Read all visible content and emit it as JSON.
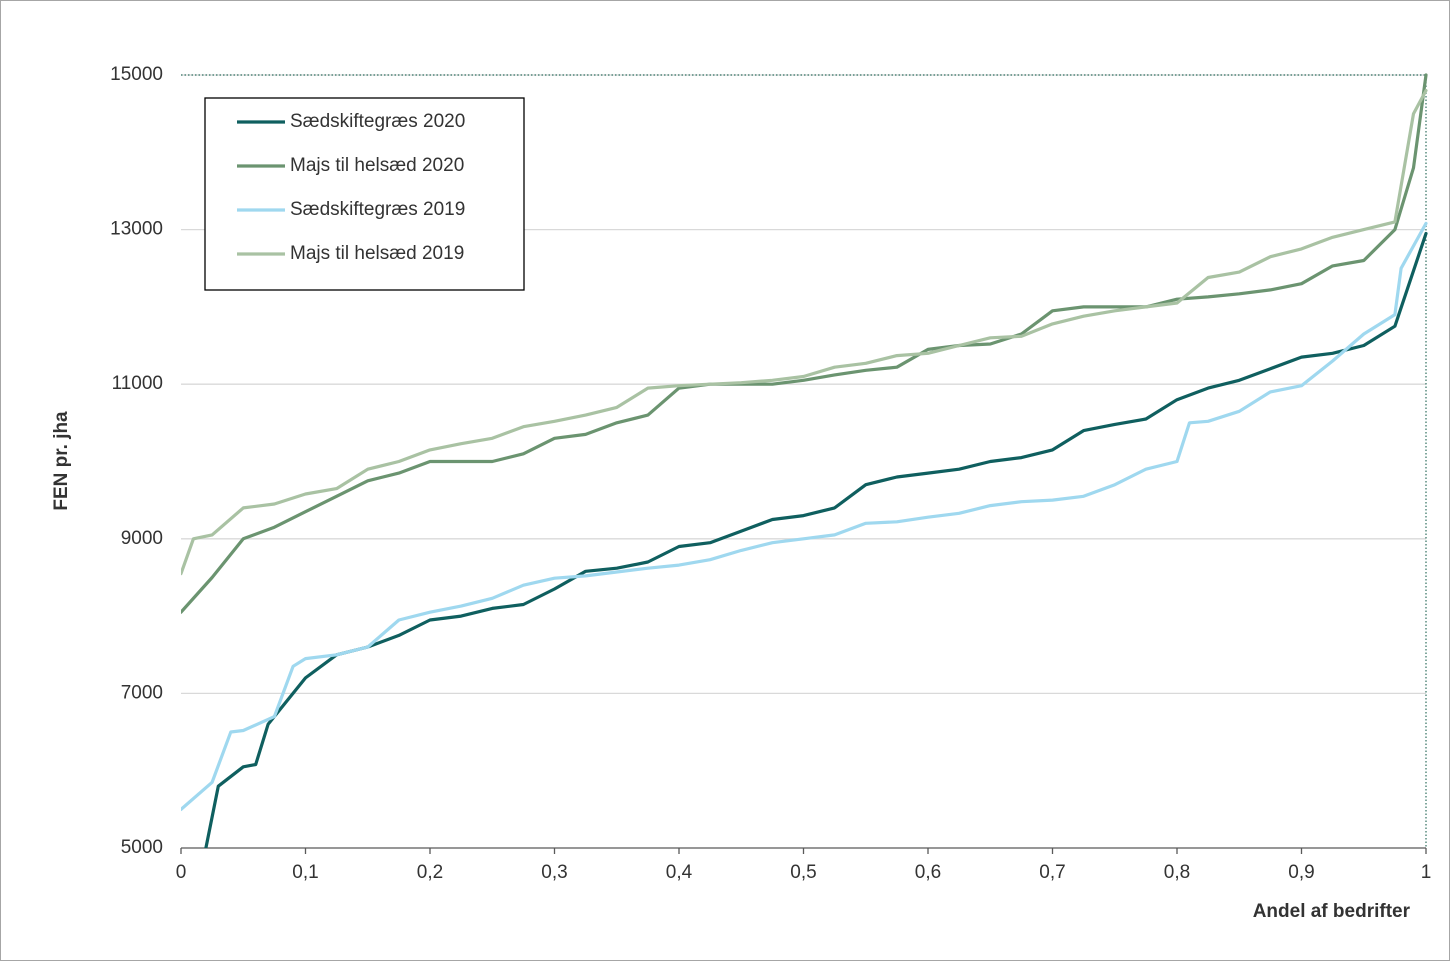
{
  "chart_data": {
    "type": "line",
    "xlabel": "Andel af bedrifter",
    "ylabel": "FEN pr. jha",
    "xlim": [
      0,
      1
    ],
    "ylim": [
      5000,
      15000
    ],
    "xticks": [
      0,
      {
        "value": 0.1,
        "label": "0,1"
      },
      {
        "value": 0.2,
        "label": "0,2"
      },
      {
        "value": 0.3,
        "label": "0,3"
      },
      {
        "value": 0.4,
        "label": "0,4"
      },
      {
        "value": 0.5,
        "label": "0,5"
      },
      {
        "value": 0.6,
        "label": "0,6"
      },
      {
        "value": 0.7,
        "label": "0,7"
      },
      {
        "value": 0.8,
        "label": "0,8"
      },
      {
        "value": 0.9,
        "label": "0,9"
      },
      1
    ],
    "yticks": [
      5000,
      7000,
      9000,
      11000,
      13000,
      15000
    ],
    "grid": true,
    "legend": "top-left",
    "series": [
      {
        "name": "Sædskiftegræs 2020",
        "color": "#0f5f5f",
        "x": [
          0.02,
          0.03,
          0.05,
          0.06,
          0.07,
          0.1,
          0.125,
          0.15,
          0.175,
          0.2,
          0.225,
          0.25,
          0.275,
          0.3,
          0.325,
          0.35,
          0.375,
          0.4,
          0.425,
          0.45,
          0.475,
          0.5,
          0.525,
          0.55,
          0.575,
          0.6,
          0.625,
          0.65,
          0.675,
          0.7,
          0.725,
          0.75,
          0.775,
          0.8,
          0.825,
          0.85,
          0.875,
          0.9,
          0.925,
          0.95,
          0.975,
          1.0
        ],
        "values": [
          5000,
          5800,
          6050,
          6080,
          6600,
          7200,
          7500,
          7600,
          7750,
          7950,
          8000,
          8100,
          8150,
          8350,
          8580,
          8620,
          8700,
          8900,
          8950,
          9100,
          9250,
          9300,
          9400,
          9700,
          9800,
          9850,
          9900,
          10000,
          10050,
          10150,
          10400,
          10480,
          10550,
          10800,
          10950,
          11050,
          11200,
          11350,
          11400,
          11500,
          11750,
          12950
        ]
      },
      {
        "name": "Majs til helsæd 2020",
        "color": "#6b9470",
        "x": [
          0,
          0.025,
          0.05,
          0.075,
          0.1,
          0.125,
          0.15,
          0.175,
          0.2,
          0.225,
          0.25,
          0.275,
          0.3,
          0.325,
          0.35,
          0.375,
          0.4,
          0.425,
          0.45,
          0.475,
          0.5,
          0.525,
          0.55,
          0.575,
          0.6,
          0.625,
          0.65,
          0.675,
          0.7,
          0.725,
          0.75,
          0.775,
          0.8,
          0.825,
          0.85,
          0.875,
          0.9,
          0.925,
          0.95,
          0.975,
          0.99,
          1.0
        ],
        "values": [
          8050,
          8500,
          9000,
          9150,
          9350,
          9550,
          9750,
          9850,
          10000,
          10000,
          10000,
          10100,
          10300,
          10350,
          10500,
          10600,
          10950,
          11000,
          11000,
          11000,
          11050,
          11120,
          11180,
          11220,
          11450,
          11500,
          11520,
          11650,
          11950,
          12000,
          12000,
          12000,
          12100,
          12130,
          12170,
          12220,
          12300,
          12530,
          12600,
          13000,
          13800,
          15000
        ]
      },
      {
        "name": "Sædskiftegræs 2019",
        "color": "#9fd8ef",
        "x": [
          0,
          0.025,
          0.04,
          0.05,
          0.075,
          0.09,
          0.1,
          0.125,
          0.15,
          0.175,
          0.2,
          0.225,
          0.25,
          0.275,
          0.3,
          0.325,
          0.35,
          0.375,
          0.4,
          0.425,
          0.45,
          0.475,
          0.5,
          0.525,
          0.55,
          0.575,
          0.6,
          0.625,
          0.65,
          0.675,
          0.7,
          0.725,
          0.75,
          0.775,
          0.8,
          0.81,
          0.825,
          0.85,
          0.875,
          0.9,
          0.925,
          0.95,
          0.975,
          0.98,
          1.0
        ],
        "values": [
          5500,
          5850,
          6500,
          6520,
          6700,
          7350,
          7450,
          7500,
          7600,
          7950,
          8050,
          8130,
          8230,
          8400,
          8490,
          8520,
          8570,
          8620,
          8660,
          8730,
          8850,
          8950,
          9000,
          9050,
          9200,
          9220,
          9280,
          9330,
          9430,
          9480,
          9500,
          9550,
          9700,
          9900,
          10000,
          10500,
          10520,
          10650,
          10900,
          10980,
          11300,
          11650,
          11900,
          12500,
          13080
        ]
      },
      {
        "name": "Majs til helsæd 2019",
        "color": "#a9c2a3",
        "x": [
          0,
          0.01,
          0.025,
          0.05,
          0.075,
          0.1,
          0.125,
          0.15,
          0.175,
          0.2,
          0.225,
          0.25,
          0.275,
          0.3,
          0.325,
          0.35,
          0.375,
          0.4,
          0.425,
          0.45,
          0.475,
          0.5,
          0.525,
          0.55,
          0.575,
          0.6,
          0.625,
          0.65,
          0.675,
          0.7,
          0.725,
          0.75,
          0.775,
          0.8,
          0.825,
          0.85,
          0.875,
          0.9,
          0.925,
          0.95,
          0.975,
          0.99,
          1.0
        ],
        "values": [
          8550,
          9000,
          9050,
          9400,
          9450,
          9580,
          9650,
          9900,
          10000,
          10150,
          10230,
          10300,
          10450,
          10520,
          10600,
          10700,
          10950,
          10980,
          11000,
          11020,
          11050,
          11100,
          11220,
          11270,
          11370,
          11400,
          11500,
          11600,
          11620,
          11780,
          11880,
          11950,
          12000,
          12050,
          12380,
          12450,
          12650,
          12750,
          12900,
          13000,
          13100,
          14500,
          14800
        ]
      }
    ]
  }
}
